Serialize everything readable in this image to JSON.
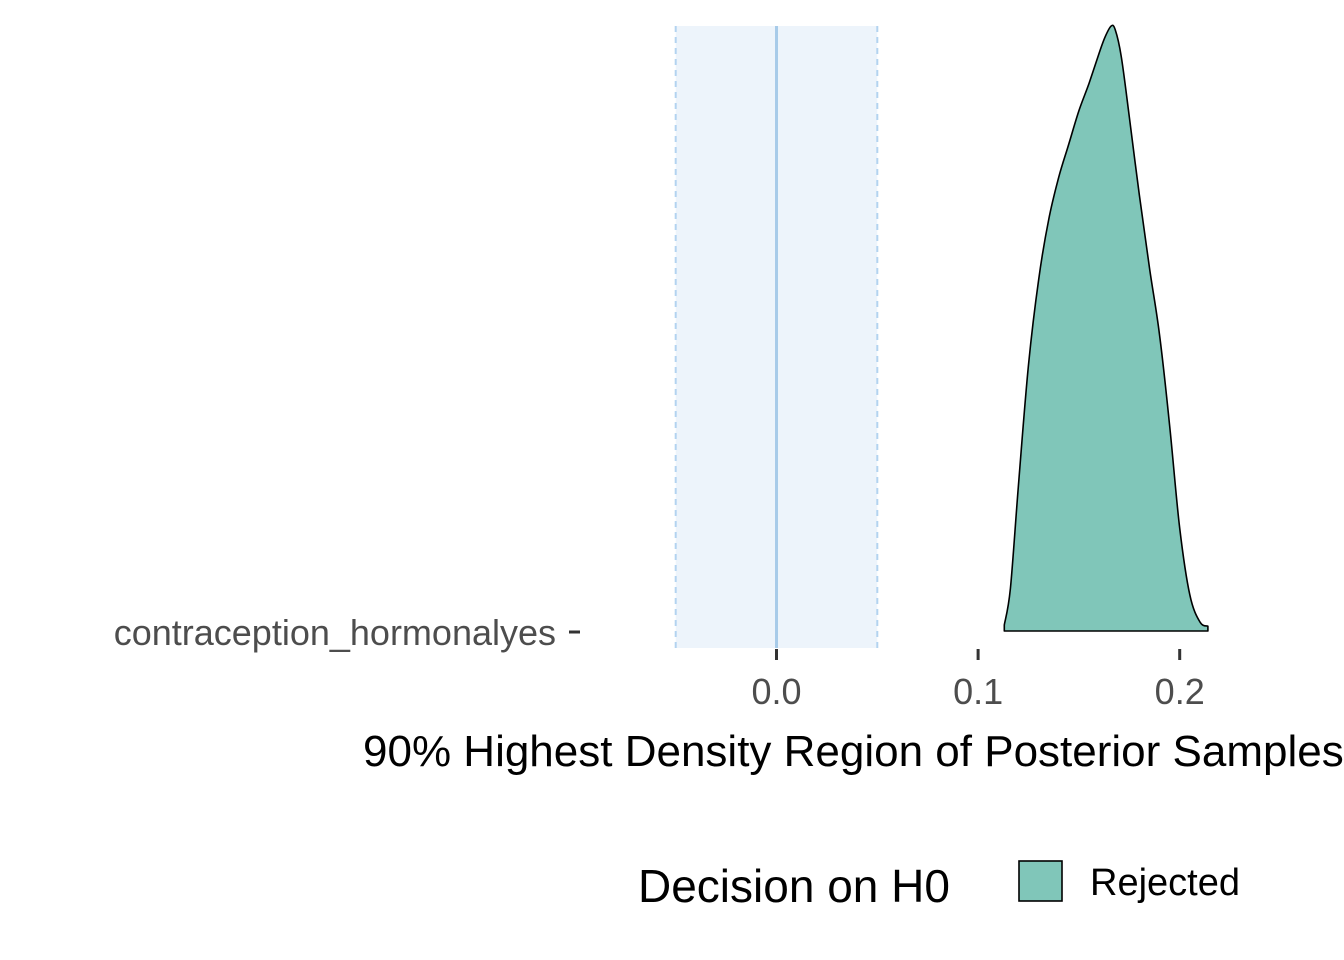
{
  "chart_data": {
    "type": "area",
    "title": "",
    "xlabel": "90% Highest Density Region of Posterior Samples",
    "ylabel": "",
    "xlim": [
      -0.0945,
      0.2815
    ],
    "x_ticks": [
      0.0,
      0.1,
      0.2
    ],
    "x_tick_labels": [
      "0.0",
      "0.1",
      "0.2"
    ],
    "categories": [
      "contraception_hormonalyes"
    ],
    "rope": {
      "low": -0.05,
      "high": 0.05,
      "center": 0.0
    },
    "series": [
      {
        "name": "contraception_hormonalyes",
        "decision": "Rejected",
        "color": "#80c6b9",
        "x": [
          0.113,
          0.116,
          0.12,
          0.125,
          0.13,
          0.135,
          0.14,
          0.145,
          0.15,
          0.155,
          0.16,
          0.163,
          0.166,
          0.168,
          0.171,
          0.175,
          0.18,
          0.185,
          0.19,
          0.195,
          0.2,
          0.205,
          0.21,
          0.214
        ],
        "density": [
          0.01,
          0.07,
          0.24,
          0.44,
          0.58,
          0.68,
          0.75,
          0.805,
          0.86,
          0.905,
          0.955,
          0.982,
          1.0,
          0.994,
          0.95,
          0.85,
          0.72,
          0.6,
          0.49,
          0.34,
          0.17,
          0.06,
          0.015,
          0.008
        ]
      }
    ],
    "legend": {
      "title": "Decision on H0",
      "position": "bottom",
      "items": [
        {
          "label": "Rejected",
          "color": "#80c6b9"
        }
      ]
    }
  },
  "colors": {
    "rope_fill": "#edf4fb",
    "rope_border": "#b3d3f0",
    "zero_line": "#a7cbe9",
    "axis_tick": "#333333",
    "density_outline": "#000000"
  }
}
